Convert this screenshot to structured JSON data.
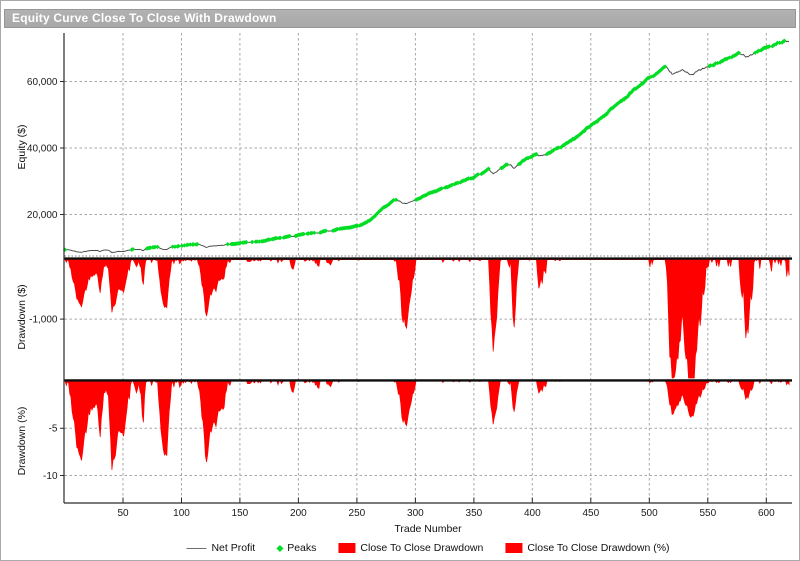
{
  "window": {
    "title": "Equity Curve Close To Close With Drawdown"
  },
  "colors": {
    "titlebar_bg": "#a8a8a8",
    "titlebar_text": "#ffffff",
    "equity_line": "#3e3e3e",
    "legend_line": "#6e6e6e",
    "peaks": "#00dd22",
    "drawdown": "#ff0000",
    "grid": "#a6a6a6",
    "axis": "#2a2a2a",
    "zero_line": "#0d0d0d",
    "tick_text": "#1b1b1b"
  },
  "axes": {
    "x": {
      "label": "Trade Number",
      "min": 1,
      "max": 622,
      "ticks": [
        {
          "v": 50,
          "label": "50"
        },
        {
          "v": 100,
          "label": "100"
        },
        {
          "v": 150,
          "label": "150"
        },
        {
          "v": 200,
          "label": "200"
        },
        {
          "v": 250,
          "label": "250"
        },
        {
          "v": 300,
          "label": "300"
        },
        {
          "v": 350,
          "label": "350"
        },
        {
          "v": 400,
          "label": "400"
        },
        {
          "v": 450,
          "label": "450"
        },
        {
          "v": 500,
          "label": "500"
        },
        {
          "v": 550,
          "label": "550"
        },
        {
          "v": 600,
          "label": "600"
        }
      ]
    },
    "equity": {
      "label": "Equity ($)",
      "min": 7200,
      "max": 74000,
      "ticks": [
        {
          "v": 20000,
          "label": "20,000"
        },
        {
          "v": 40000,
          "label": "40,000"
        },
        {
          "v": 60000,
          "label": "60,000"
        }
      ]
    },
    "dd_dollar": {
      "label": "Drawdown ($)",
      "min": -2000,
      "max": 0,
      "ticks": [
        {
          "v": -1000,
          "label": "-1,000"
        }
      ]
    },
    "dd_pct": {
      "label": "Drawdown (%)",
      "min": -13,
      "max": 0,
      "ticks": [
        {
          "v": -5,
          "label": "-5"
        },
        {
          "v": -10,
          "label": "-10"
        }
      ]
    }
  },
  "legend": {
    "items": [
      {
        "icon": "line",
        "label": "Net Profit"
      },
      {
        "icon": "diamond",
        "label": "Peaks"
      },
      {
        "icon": "rect",
        "label": "Close To Close Drawdown"
      },
      {
        "icon": "rect",
        "label": "Close To Close Drawdown (%)"
      }
    ]
  },
  "chart_data": {
    "type": "line",
    "title": "Equity Curve Close To Close With Drawdown",
    "xlabel": "Trade Number",
    "n_trades": 620,
    "x_range": [
      1,
      622
    ],
    "panels": [
      {
        "name": "equity",
        "ylabel": "Equity ($)",
        "series": [
          "Net Profit",
          "Peaks"
        ],
        "ylim": [
          7200,
          74000
        ]
      },
      {
        "name": "drawdown_dollar",
        "ylabel": "Drawdown ($)",
        "series": [
          "Close To Close Drawdown"
        ],
        "ylim": [
          -2000,
          0
        ],
        "derived": "equity minus running peak"
      },
      {
        "name": "drawdown_pct",
        "ylabel": "Drawdown (%)",
        "series": [
          "Close To Close Drawdown (%)"
        ],
        "ylim": [
          -13,
          0
        ],
        "derived": "percent below running peak"
      }
    ],
    "equity_anchors": [
      [
        1,
        9400
      ],
      [
        6,
        9250
      ],
      [
        10,
        8850
      ],
      [
        13,
        8600
      ],
      [
        15,
        8650
      ],
      [
        17,
        8800
      ],
      [
        20,
        9050
      ],
      [
        24,
        9250
      ],
      [
        27,
        9400
      ],
      [
        31,
        9050
      ],
      [
        34,
        9300
      ],
      [
        38,
        9450
      ],
      [
        41,
        8650
      ],
      [
        44,
        8800
      ],
      [
        48,
        8950
      ],
      [
        52,
        9050
      ],
      [
        56,
        9250
      ],
      [
        60,
        9500
      ],
      [
        64,
        9650
      ],
      [
        68,
        9150
      ],
      [
        72,
        9900
      ],
      [
        76,
        10050
      ],
      [
        80,
        10150
      ],
      [
        84,
        9550
      ],
      [
        88,
        9350
      ],
      [
        93,
        10250
      ],
      [
        97,
        10350
      ],
      [
        100,
        10450
      ],
      [
        104,
        10700
      ],
      [
        108,
        10950
      ],
      [
        112,
        11100
      ],
      [
        115,
        11000
      ],
      [
        118,
        10700
      ],
      [
        122,
        10150
      ],
      [
        125,
        10350
      ],
      [
        129,
        10600
      ],
      [
        133,
        10750
      ],
      [
        137,
        10950
      ],
      [
        140,
        11000
      ],
      [
        144,
        11200
      ],
      [
        147,
        11250
      ],
      [
        151,
        11450
      ],
      [
        155,
        11600
      ],
      [
        160,
        11750
      ],
      [
        164,
        11900
      ],
      [
        168,
        12050
      ],
      [
        172,
        12250
      ],
      [
        176,
        12400
      ],
      [
        181,
        12700
      ],
      [
        185,
        12900
      ],
      [
        190,
        13150
      ],
      [
        195,
        13400
      ],
      [
        200,
        13650
      ],
      [
        204,
        13850
      ],
      [
        208,
        14050
      ],
      [
        212,
        14250
      ],
      [
        216,
        14450
      ],
      [
        220,
        14700
      ],
      [
        224,
        14950
      ],
      [
        229,
        15250
      ],
      [
        233,
        15450
      ],
      [
        238,
        15800
      ],
      [
        242,
        16050
      ],
      [
        246,
        16350
      ],
      [
        250,
        16650
      ],
      [
        254,
        17000
      ],
      [
        258,
        17600
      ],
      [
        262,
        18500
      ],
      [
        266,
        19700
      ],
      [
        270,
        20900
      ],
      [
        274,
        22200
      ],
      [
        278,
        23400
      ],
      [
        281,
        24100
      ],
      [
        284,
        24500
      ],
      [
        287,
        24100
      ],
      [
        290,
        23300
      ],
      [
        293,
        23200
      ],
      [
        296,
        23500
      ],
      [
        300,
        24100
      ],
      [
        304,
        24700
      ],
      [
        308,
        25300
      ],
      [
        312,
        26100
      ],
      [
        316,
        26600
      ],
      [
        320,
        27200
      ],
      [
        324,
        27700
      ],
      [
        328,
        28200
      ],
      [
        332,
        28700
      ],
      [
        336,
        29200
      ],
      [
        340,
        29800
      ],
      [
        344,
        30400
      ],
      [
        348,
        31000
      ],
      [
        352,
        31700
      ],
      [
        356,
        32300
      ],
      [
        360,
        33000
      ],
      [
        363,
        33500
      ],
      [
        367,
        32300
      ],
      [
        370,
        33000
      ],
      [
        373,
        33800
      ],
      [
        376,
        34400
      ],
      [
        379,
        35000
      ],
      [
        382,
        35300
      ],
      [
        385,
        34000
      ],
      [
        388,
        34800
      ],
      [
        391,
        35700
      ],
      [
        394,
        36500
      ],
      [
        397,
        37100
      ],
      [
        400,
        37500
      ],
      [
        403,
        37900
      ],
      [
        406,
        37700
      ],
      [
        409,
        37800
      ],
      [
        412,
        38100
      ],
      [
        415,
        38600
      ],
      [
        418,
        39100
      ],
      [
        421,
        39700
      ],
      [
        425,
        40400
      ],
      [
        429,
        41200
      ],
      [
        433,
        42200
      ],
      [
        437,
        43100
      ],
      [
        441,
        44100
      ],
      [
        445,
        45200
      ],
      [
        449,
        46300
      ],
      [
        453,
        47400
      ],
      [
        457,
        48500
      ],
      [
        461,
        49700
      ],
      [
        465,
        50800
      ],
      [
        469,
        52000
      ],
      [
        473,
        53200
      ],
      [
        477,
        54400
      ],
      [
        481,
        55500
      ],
      [
        485,
        56700
      ],
      [
        489,
        57900
      ],
      [
        493,
        59000
      ],
      [
        497,
        60100
      ],
      [
        501,
        61000
      ],
      [
        505,
        61900
      ],
      [
        508,
        62600
      ],
      [
        511,
        63100
      ],
      [
        514,
        63600
      ],
      [
        517,
        62900
      ],
      [
        520,
        62100
      ],
      [
        523,
        62300
      ],
      [
        526,
        62700
      ],
      [
        529,
        63100
      ],
      [
        532,
        62900
      ],
      [
        535,
        62500
      ],
      [
        538,
        62400
      ],
      [
        541,
        62900
      ],
      [
        544,
        63400
      ],
      [
        547,
        63800
      ],
      [
        550,
        64100
      ],
      [
        553,
        64500
      ],
      [
        556,
        64900
      ],
      [
        559,
        65400
      ],
      [
        562,
        65900
      ],
      [
        565,
        66400
      ],
      [
        568,
        66800
      ],
      [
        571,
        67200
      ],
      [
        574,
        67700
      ],
      [
        577,
        68100
      ],
      [
        580,
        68400
      ],
      [
        583,
        67900
      ],
      [
        586,
        68100
      ],
      [
        589,
        68600
      ],
      [
        592,
        69000
      ],
      [
        595,
        69400
      ],
      [
        598,
        69800
      ],
      [
        601,
        70200
      ],
      [
        604,
        70600
      ],
      [
        607,
        70900
      ],
      [
        610,
        71200
      ],
      [
        613,
        71400
      ],
      [
        616,
        71600
      ],
      [
        620,
        71500
      ]
    ],
    "noise": {
      "seed": 42,
      "base": 120,
      "factor": 0.0075,
      "decay": 0.8
    }
  }
}
